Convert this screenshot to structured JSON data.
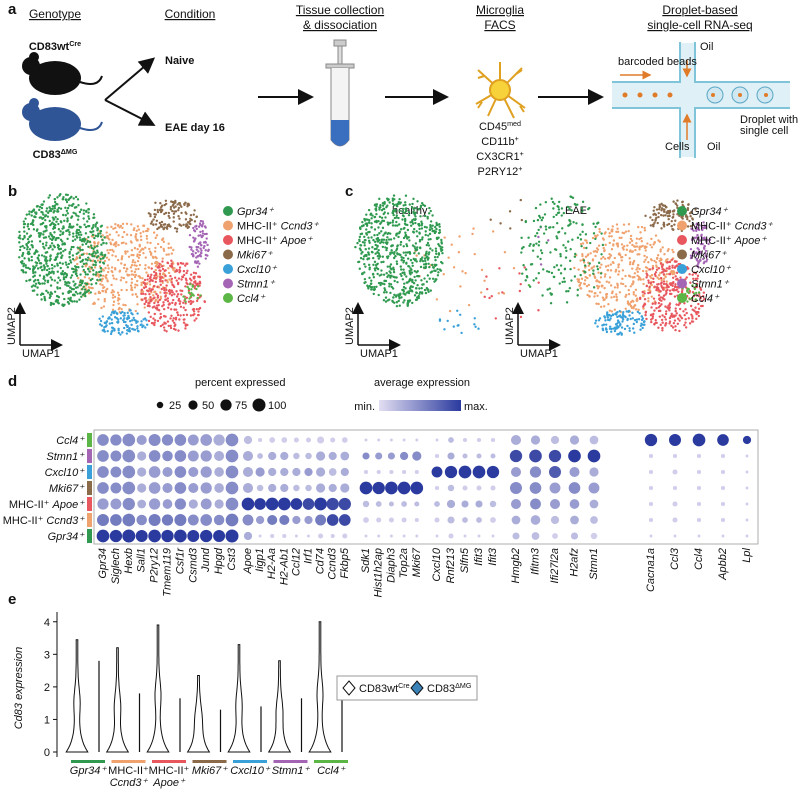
{
  "panel_labels": [
    "a",
    "b",
    "c",
    "d",
    "e"
  ],
  "a": {
    "genotype_title": "Genotype",
    "wt": {
      "base": "CD83wt",
      "sup": "Cre"
    },
    "mg": {
      "base": "CD83",
      "sup": "ΔMG"
    },
    "condition_title": "Condition",
    "naive": "Naive",
    "eae": "EAE day 16",
    "tissue_title": [
      "Tissue collection",
      "& dissociation"
    ],
    "facs_title": [
      "Microglia",
      "FACS"
    ],
    "facs_markers": [
      {
        "base": "CD45",
        "sup": "med"
      },
      {
        "base": "CD11b",
        "sup": "+"
      },
      {
        "base": "CX3CR1",
        "sup": "+"
      },
      {
        "base": "P2RY12",
        "sup": "+"
      }
    ],
    "seq_title": [
      "Droplet-based",
      "single-cell RNA-seq"
    ],
    "beads": "barcoded beads",
    "oil": "Oil",
    "droplet": [
      "Droplet with",
      "single cell"
    ],
    "cells": "Cells"
  },
  "clusters": [
    {
      "gene": "Gpr34⁺",
      "color": "#2f9a4f"
    },
    {
      "prefix": "MHC-II⁺",
      "gene": "Ccnd3⁺",
      "color": "#f0a26e"
    },
    {
      "prefix": "MHC-II⁺",
      "gene": "Apoe⁺",
      "color": "#e8575e"
    },
    {
      "gene": "Mki67⁺",
      "color": "#8b6a4a"
    },
    {
      "gene": "Cxcl10⁺",
      "color": "#3aa0d8"
    },
    {
      "gene": "Stmn1⁺",
      "color": "#a565b5"
    },
    {
      "gene": "Ccl4⁺",
      "color": "#5cb646"
    }
  ],
  "umap": {
    "x_label": "UMAP1",
    "y_label": "UMAP2"
  },
  "c": {
    "healthy": "healthy",
    "eae": "EAE"
  },
  "d": {
    "percent_title": "percent expressed",
    "size_legend": [
      25,
      50,
      75,
      100
    ],
    "expression_title": "average expression",
    "min": "min.",
    "max": "max.",
    "color_low": "#e2def2",
    "color_high": "#2a3a9e",
    "genes": [
      "Gpr34",
      "Siglech",
      "Hexb",
      "Sall1",
      "P2ry12",
      "Tmem119",
      "Csf1r",
      "Csmd3",
      "Jund",
      "Hpgd",
      "Cst3",
      "Apoe",
      "Iigp1",
      "H2-Aa",
      "H2-Ab1",
      "Ccl12",
      "Irf1",
      "Cd74",
      "Ccnd3",
      "Fkbp5",
      "Sdk1",
      "Hist1h2ap",
      "Diaph3",
      "Top2a",
      "Mki67",
      "Cxcl10",
      "Rnf213",
      "Slfn5",
      "Ifit3",
      "Ifit3",
      "Hmgb2",
      "Ifitm3",
      "Ifi27l2a",
      "H2afz",
      "Stmn1",
      "Cacna1a",
      "Ccl3",
      "Ccl4",
      "Apbb2",
      "Lpl"
    ],
    "percent": [
      [
        95,
        90,
        100,
        85,
        95,
        90,
        95,
        85,
        90,
        85,
        100,
        40,
        5,
        10,
        10,
        5,
        5,
        15,
        10,
        15,
        5,
        5,
        5,
        5,
        5,
        5,
        15,
        5,
        5,
        5,
        30,
        35,
        20,
        30,
        25,
        5,
        5,
        5,
        5,
        5
      ],
      [
        85,
        80,
        95,
        65,
        85,
        75,
        85,
        70,
        80,
        65,
        95,
        70,
        40,
        60,
        60,
        40,
        40,
        70,
        80,
        80,
        20,
        15,
        15,
        15,
        10,
        15,
        30,
        20,
        20,
        20,
        45,
        55,
        40,
        45,
        35,
        10,
        15,
        10,
        10,
        5
      ],
      [
        75,
        70,
        90,
        45,
        75,
        55,
        75,
        50,
        70,
        50,
        95,
        95,
        80,
        95,
        95,
        80,
        80,
        95,
        90,
        90,
        25,
        20,
        15,
        20,
        15,
        20,
        40,
        30,
        30,
        25,
        60,
        70,
        60,
        55,
        45,
        10,
        15,
        10,
        10,
        5
      ],
      [
        80,
        70,
        95,
        50,
        80,
        60,
        80,
        60,
        75,
        55,
        95,
        60,
        25,
        40,
        40,
        25,
        25,
        50,
        40,
        50,
        95,
        90,
        95,
        95,
        95,
        10,
        25,
        15,
        15,
        15,
        85,
        80,
        70,
        80,
        70,
        10,
        10,
        10,
        10,
        5
      ],
      [
        80,
        70,
        95,
        50,
        80,
        60,
        80,
        60,
        75,
        55,
        95,
        60,
        50,
        40,
        40,
        40,
        40,
        50,
        35,
        40,
        10,
        10,
        10,
        10,
        10,
        70,
        90,
        95,
        95,
        90,
        60,
        75,
        85,
        60,
        50,
        10,
        15,
        10,
        10,
        5
      ],
      [
        80,
        70,
        95,
        50,
        80,
        65,
        80,
        70,
        75,
        60,
        95,
        60,
        20,
        40,
        40,
        25,
        25,
        50,
        40,
        45,
        30,
        30,
        30,
        40,
        50,
        10,
        30,
        15,
        15,
        15,
        90,
        95,
        90,
        95,
        95,
        10,
        10,
        10,
        10,
        5
      ],
      [
        80,
        75,
        95,
        60,
        85,
        75,
        80,
        70,
        80,
        75,
        95,
        40,
        10,
        20,
        20,
        15,
        15,
        30,
        15,
        20,
        5,
        5,
        5,
        5,
        5,
        5,
        20,
        10,
        10,
        10,
        60,
        50,
        40,
        50,
        45,
        90,
        85,
        95,
        80,
        40
      ]
    ],
    "expression": [
      [
        1,
        1,
        1,
        1,
        1,
        1,
        1,
        1,
        1,
        1,
        1,
        0.3,
        0.1,
        0.1,
        0.1,
        0.1,
        0.1,
        0.1,
        0.1,
        0.1,
        0.1,
        0.1,
        0.1,
        0.1,
        0.1,
        0.1,
        0.1,
        0.1,
        0.1,
        0.1,
        0.2,
        0.2,
        0.1,
        0.2,
        0.1,
        0.1,
        0.1,
        0.1,
        0.1,
        0.1
      ],
      [
        0.6,
        0.6,
        0.6,
        0.5,
        0.6,
        0.6,
        0.6,
        0.5,
        0.5,
        0.5,
        0.6,
        0.5,
        0.4,
        0.6,
        0.6,
        0.4,
        0.4,
        0.6,
        0.9,
        0.9,
        0.1,
        0.1,
        0.1,
        0.1,
        0.1,
        0.1,
        0.2,
        0.2,
        0.2,
        0.1,
        0.3,
        0.3,
        0.2,
        0.3,
        0.2,
        0.1,
        0.1,
        0.1,
        0.1,
        0.1
      ],
      [
        0.4,
        0.4,
        0.5,
        0.3,
        0.4,
        0.4,
        0.5,
        0.3,
        0.4,
        0.3,
        0.5,
        1,
        1,
        1,
        1,
        1,
        0.9,
        1,
        0.9,
        0.9,
        0.2,
        0.2,
        0.2,
        0.2,
        0.2,
        0.2,
        0.3,
        0.3,
        0.3,
        0.2,
        0.4,
        0.5,
        0.4,
        0.4,
        0.3,
        0.1,
        0.1,
        0.1,
        0.1,
        0.1
      ],
      [
        0.5,
        0.5,
        0.5,
        0.3,
        0.4,
        0.4,
        0.5,
        0.4,
        0.4,
        0.3,
        0.5,
        0.3,
        0.2,
        0.3,
        0.3,
        0.2,
        0.2,
        0.3,
        0.3,
        0.3,
        1,
        1,
        1,
        1,
        1,
        0.1,
        0.2,
        0.1,
        0.1,
        0.1,
        0.5,
        0.5,
        0.4,
        0.5,
        0.4,
        0.1,
        0.1,
        0.1,
        0.1,
        0.1
      ],
      [
        0.5,
        0.5,
        0.5,
        0.3,
        0.4,
        0.4,
        0.5,
        0.4,
        0.4,
        0.3,
        0.5,
        0.3,
        0.4,
        0.3,
        0.3,
        0.3,
        0.4,
        0.3,
        0.2,
        0.3,
        0.1,
        0.1,
        0.1,
        0.1,
        0.1,
        1,
        1,
        1,
        1,
        1,
        0.4,
        0.5,
        0.8,
        0.4,
        0.3,
        0.1,
        0.1,
        0.1,
        0.1,
        0.1
      ],
      [
        0.5,
        0.5,
        0.5,
        0.3,
        0.5,
        0.5,
        0.5,
        0.4,
        0.4,
        0.3,
        0.5,
        0.3,
        0.2,
        0.3,
        0.3,
        0.2,
        0.2,
        0.3,
        0.3,
        0.3,
        0.5,
        0.4,
        0.4,
        0.5,
        0.5,
        0.1,
        0.3,
        0.2,
        0.2,
        0.2,
        0.9,
        0.9,
        0.9,
        1,
        1,
        0.1,
        0.1,
        0.1,
        0.1,
        0.1
      ],
      [
        0.5,
        0.5,
        0.5,
        0.4,
        0.5,
        0.5,
        0.5,
        0.4,
        0.4,
        0.3,
        0.5,
        0.2,
        0.1,
        0.1,
        0.1,
        0.1,
        0.1,
        0.1,
        0.1,
        0.1,
        0.1,
        0.1,
        0.1,
        0.1,
        0.1,
        0.1,
        0.2,
        0.1,
        0.1,
        0.1,
        0.3,
        0.3,
        0.2,
        0.3,
        0.2,
        1,
        1,
        1,
        1,
        1
      ]
    ]
  },
  "e": {
    "y_label": "Cd83 expression",
    "ylim": [
      0,
      4.3
    ],
    "yticks": [
      0,
      1,
      2,
      3,
      4
    ],
    "legend": [
      {
        "base": "CD83wt",
        "sup": "Cre",
        "color": "#ffffff"
      },
      {
        "base": "CD83",
        "sup": "ΔMG",
        "color": "#3b82b8"
      }
    ],
    "wt_max": [
      3.45,
      3.2,
      3.9,
      2.35,
      3.3,
      2.8,
      4.0
    ],
    "mg_max": [
      2.8,
      1.8,
      1.65,
      1.3,
      1.4,
      1.65,
      2.0
    ]
  }
}
